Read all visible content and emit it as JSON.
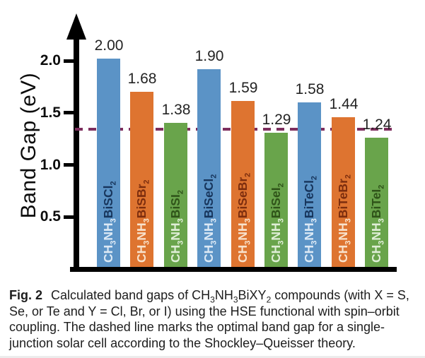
{
  "figure": {
    "caption": {
      "fig_label": "Fig. 2",
      "text": "Calculated band gaps of CH3NH3BiXY2 compounds (with X = S, Se, or Te and Y = Cl, Br, or I) using the HSE functional with spin–orbit coupling. The dashed line marks the optimal band gap for a single-junction solar cell according to the Shockley–Queisser theory."
    }
  },
  "chart_data": {
    "type": "bar",
    "title": "",
    "xlabel": "",
    "ylabel": "Band Gap (eV)",
    "ylim": [
      0,
      2.3
    ],
    "yticks": [
      "0.5",
      "1.0",
      "1.5",
      "2.0"
    ],
    "grid": false,
    "legend": false,
    "categories": [
      "CH3NH3BiSCl2",
      "CH3NH3BiSBr2",
      "CH3NH3BiSI2",
      "CH3NH3BiSeCl2",
      "CH3NH3BiSeBr2",
      "CH3NH3BiSeI2",
      "CH3NH3BiTeCl2",
      "CH3NH3BiTeBr2",
      "CH3NH3BiTeI2"
    ],
    "values": [
      2.0,
      1.68,
      1.38,
      1.9,
      1.59,
      1.29,
      1.58,
      1.44,
      1.24
    ],
    "value_labels": [
      "2.00",
      "1.68",
      "1.38",
      "1.90",
      "1.59",
      "1.29",
      "1.58",
      "1.44",
      "1.24"
    ],
    "bar_label_prefix": "CH3NH3",
    "bar_label_main": [
      "BiSCl2",
      "BiSBr2",
      "BiSI2",
      "BiSeCl2",
      "BiSeBr2",
      "BiSeI2",
      "BiTeCl2",
      "BiTeBr2",
      "BiTeI2"
    ],
    "bar_color_keys": [
      "blue",
      "orange",
      "green",
      "blue",
      "orange",
      "green",
      "blue",
      "orange",
      "green"
    ],
    "palette": {
      "blue": {
        "fill": "#5b93c6",
        "label_dark": "#17355c",
        "label_light": "#dce9f5"
      },
      "orange": {
        "fill": "#de7430",
        "label_dark": "#7c2d0e",
        "label_light": "#f8e2cc"
      },
      "green": {
        "fill": "#69a44b",
        "label_dark": "#2f5319",
        "label_light": "#dfeed6"
      }
    },
    "reference_line": {
      "value": 1.34,
      "style": "dashed",
      "color": "#7d2e5d"
    },
    "axis_color": "#000000"
  }
}
